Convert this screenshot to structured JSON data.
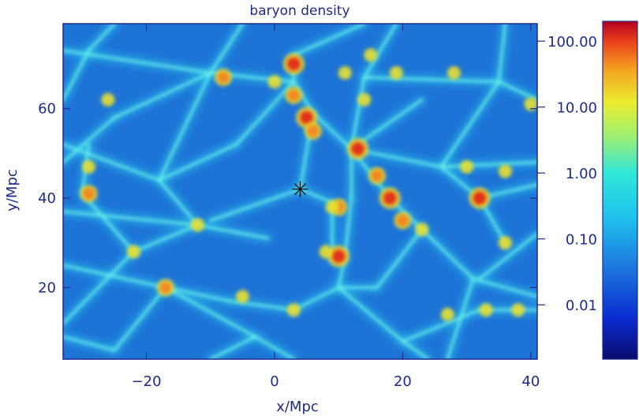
{
  "chart_data": {
    "type": "heatmap",
    "title": "baryon density",
    "xlabel": "x/Mpc",
    "ylabel": "y/Mpc",
    "xlim": [
      -33,
      41
    ],
    "ylim": [
      4,
      79
    ],
    "xticks": [
      -20,
      0,
      20,
      40
    ],
    "yticks": [
      20,
      40,
      60
    ],
    "marker": {
      "symbol": "asterisk",
      "x": 4,
      "y": 42
    },
    "colorbar": {
      "scale": "log",
      "range": [
        0.0015,
        200
      ],
      "ticks": [
        {
          "value": 0.01,
          "label": "0.01"
        },
        {
          "value": 0.1,
          "label": "0.10"
        },
        {
          "value": 1,
          "label": "1.00"
        },
        {
          "value": 10,
          "label": "10.00"
        },
        {
          "value": 100,
          "label": "100.00"
        }
      ]
    },
    "colors": {
      "axis": "#1f2a8a",
      "background_field": "#1e73d6",
      "filament": "#2cd0f0",
      "dense": "#e8e030",
      "peak": "#e0301a"
    },
    "filaments": [
      {
        "from": [
          -33,
          73
        ],
        "to": [
          -10,
          68
        ]
      },
      {
        "from": [
          -10,
          68
        ],
        "to": [
          3,
          66
        ]
      },
      {
        "from": [
          3,
          66
        ],
        "to": [
          6,
          59
        ]
      },
      {
        "from": [
          6,
          59
        ],
        "to": [
          12,
          51
        ]
      },
      {
        "from": [
          12,
          51
        ],
        "to": [
          18,
          40
        ]
      },
      {
        "from": [
          18,
          40
        ],
        "to": [
          23,
          33
        ]
      },
      {
        "from": [
          23,
          33
        ],
        "to": [
          31,
          22
        ]
      },
      {
        "from": [
          31,
          22
        ],
        "to": [
          41,
          18
        ]
      },
      {
        "from": [
          3,
          72
        ],
        "to": [
          3,
          66
        ]
      },
      {
        "from": [
          -33,
          52
        ],
        "to": [
          -18,
          44
        ]
      },
      {
        "from": [
          -33,
          37
        ],
        "to": [
          -12,
          34
        ]
      },
      {
        "from": [
          -12,
          34
        ],
        "to": [
          -1,
          31
        ]
      },
      {
        "from": [
          -33,
          25
        ],
        "to": [
          -17,
          20
        ]
      },
      {
        "from": [
          -17,
          20
        ],
        "to": [
          -3,
          9
        ]
      },
      {
        "from": [
          -17,
          20
        ],
        "to": [
          -7,
          17
        ]
      },
      {
        "from": [
          -7,
          17
        ],
        "to": [
          3,
          15
        ]
      },
      {
        "from": [
          3,
          15
        ],
        "to": [
          10,
          20
        ]
      },
      {
        "from": [
          10,
          20
        ],
        "to": [
          11,
          27
        ]
      },
      {
        "from": [
          11,
          27
        ],
        "to": [
          12,
          40
        ]
      },
      {
        "from": [
          12,
          40
        ],
        "to": [
          12,
          51
        ]
      },
      {
        "from": [
          9,
          39
        ],
        "to": [
          9,
          26
        ]
      },
      {
        "from": [
          12,
          51
        ],
        "to": [
          23,
          62
        ]
      },
      {
        "from": [
          12,
          51
        ],
        "to": [
          26,
          47
        ]
      },
      {
        "from": [
          26,
          47
        ],
        "to": [
          41,
          48
        ]
      },
      {
        "from": [
          26,
          47
        ],
        "to": [
          32,
          40
        ]
      },
      {
        "from": [
          32,
          40
        ],
        "to": [
          41,
          43
        ]
      },
      {
        "from": [
          32,
          40
        ],
        "to": [
          36,
          30
        ]
      },
      {
        "from": [
          3,
          72
        ],
        "to": [
          14,
          79
        ]
      },
      {
        "from": [
          14,
          67
        ],
        "to": [
          35,
          66
        ]
      },
      {
        "from": [
          -29,
          52
        ],
        "to": [
          -30,
          41
        ]
      },
      {
        "from": [
          -30,
          41
        ],
        "to": [
          -22,
          28
        ]
      },
      {
        "from": [
          -22,
          28
        ],
        "to": [
          -33,
          12
        ]
      },
      {
        "from": [
          -22,
          28
        ],
        "to": [
          -12,
          34
        ]
      },
      {
        "from": [
          -12,
          34
        ],
        "to": [
          -18,
          44
        ]
      },
      {
        "from": [
          -18,
          44
        ],
        "to": [
          -10,
          68
        ]
      },
      {
        "from": [
          -5,
          79
        ],
        "to": [
          -10,
          68
        ]
      },
      {
        "from": [
          3,
          66
        ],
        "to": [
          -6,
          52
        ]
      },
      {
        "from": [
          -6,
          52
        ],
        "to": [
          -18,
          44
        ]
      },
      {
        "from": [
          4,
          42
        ],
        "to": [
          -10,
          35
        ]
      },
      {
        "from": [
          4,
          42
        ],
        "to": [
          9,
          39
        ]
      },
      {
        "from": [
          4,
          42
        ],
        "to": [
          6,
          59
        ]
      },
      {
        "from": [
          19,
          79
        ],
        "to": [
          14,
          67
        ]
      },
      {
        "from": [
          14,
          67
        ],
        "to": [
          12,
          51
        ]
      },
      {
        "from": [
          36,
          79
        ],
        "to": [
          35,
          66
        ]
      },
      {
        "from": [
          35,
          66
        ],
        "to": [
          41,
          62
        ]
      },
      {
        "from": [
          35,
          66
        ],
        "to": [
          26,
          47
        ]
      },
      {
        "from": [
          41,
          32
        ],
        "to": [
          32,
          22
        ]
      },
      {
        "from": [
          10,
          20
        ],
        "to": [
          20,
          8
        ]
      },
      {
        "from": [
          20,
          8
        ],
        "to": [
          24,
          4
        ]
      },
      {
        "from": [
          20,
          8
        ],
        "to": [
          32,
          15
        ]
      },
      {
        "from": [
          32,
          15
        ],
        "to": [
          41,
          15
        ]
      },
      {
        "from": [
          -29,
          73
        ],
        "to": [
          -33,
          62
        ]
      },
      {
        "from": [
          -29,
          73
        ],
        "to": [
          -25,
          79
        ]
      },
      {
        "from": [
          -3,
          9
        ],
        "to": [
          -10,
          4
        ]
      },
      {
        "from": [
          -3,
          9
        ],
        "to": [
          3,
          4
        ]
      },
      {
        "from": [
          -25,
          6
        ],
        "to": [
          -33,
          9
        ]
      },
      {
        "from": [
          -25,
          6
        ],
        "to": [
          -17,
          20
        ]
      },
      {
        "from": [
          23,
          33
        ],
        "to": [
          16,
          20
        ]
      },
      {
        "from": [
          16,
          20
        ],
        "to": [
          10,
          20
        ]
      },
      {
        "from": [
          27,
          4
        ],
        "to": [
          31,
          22
        ]
      },
      {
        "from": [
          -25,
          58
        ],
        "to": [
          -33,
          48
        ]
      },
      {
        "from": [
          -25,
          58
        ],
        "to": [
          -10,
          68
        ]
      }
    ],
    "clumps": [
      {
        "x": -8,
        "y": 67,
        "level": 2
      },
      {
        "x": 0,
        "y": 66,
        "level": 1
      },
      {
        "x": 3,
        "y": 63,
        "level": 2
      },
      {
        "x": 3,
        "y": 70,
        "level": 3
      },
      {
        "x": 5,
        "y": 58,
        "level": 3
      },
      {
        "x": 6,
        "y": 55,
        "level": 2
      },
      {
        "x": 13,
        "y": 51,
        "level": 3
      },
      {
        "x": 16,
        "y": 45,
        "level": 2
      },
      {
        "x": 18,
        "y": 40,
        "level": 3
      },
      {
        "x": 20,
        "y": 35,
        "level": 2
      },
      {
        "x": 32,
        "y": 40,
        "level": 3
      },
      {
        "x": 10,
        "y": 27,
        "level": 3
      },
      {
        "x": 10,
        "y": 38,
        "level": 2
      },
      {
        "x": 8,
        "y": 28,
        "level": 1
      },
      {
        "x": -29,
        "y": 41,
        "level": 2
      },
      {
        "x": -29,
        "y": 47,
        "level": 1
      },
      {
        "x": -17,
        "y": 20,
        "level": 2
      },
      {
        "x": -5,
        "y": 18,
        "level": 1
      },
      {
        "x": 11,
        "y": 68,
        "level": 1
      },
      {
        "x": 14,
        "y": 62,
        "level": 1
      },
      {
        "x": 19,
        "y": 68,
        "level": 1
      },
      {
        "x": 28,
        "y": 68,
        "level": 1
      },
      {
        "x": 30,
        "y": 47,
        "level": 1
      },
      {
        "x": 36,
        "y": 46,
        "level": 1
      },
      {
        "x": 33,
        "y": 15,
        "level": 1
      },
      {
        "x": 27,
        "y": 14,
        "level": 1
      },
      {
        "x": 38,
        "y": 15,
        "level": 1
      },
      {
        "x": 3,
        "y": 15,
        "level": 1
      },
      {
        "x": -22,
        "y": 28,
        "level": 1
      },
      {
        "x": -12,
        "y": 34,
        "level": 1
      },
      {
        "x": 36,
        "y": 30,
        "level": 1
      },
      {
        "x": -26,
        "y": 62,
        "level": 1
      },
      {
        "x": 9,
        "y": 38,
        "level": 1
      },
      {
        "x": 23,
        "y": 33,
        "level": 1
      },
      {
        "x": 15,
        "y": 72,
        "level": 1
      },
      {
        "x": 40,
        "y": 61,
        "level": 1
      }
    ]
  }
}
